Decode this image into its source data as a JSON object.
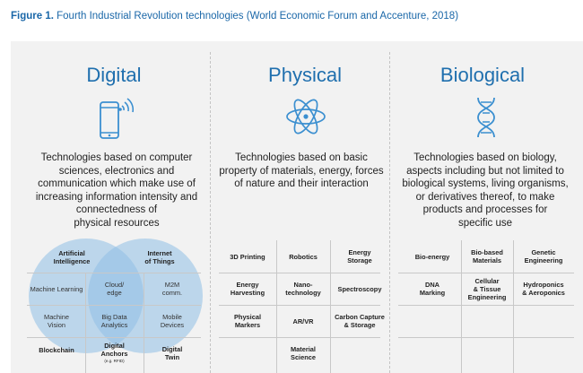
{
  "figure": {
    "label": "Figure 1.",
    "title": "Fourth Industrial Revolution technologies (World Economic Forum and Accenture, 2018)"
  },
  "columns": {
    "digital": {
      "title": "Digital",
      "icon": "smartphone-wifi-icon",
      "desc": [
        "Technologies based on computer",
        "sciences, electronics and",
        "communication which make use of",
        "increasing information intensity and",
        "connectedness of",
        "physical resources"
      ],
      "venn": {
        "circle_left": "Artificial Intelligence",
        "circle_right": "Internet of Things"
      },
      "cells": [
        [
          "Artificial\nIntelligence",
          "",
          "Internet\nof Things"
        ],
        [
          "Machine Learning",
          "Cloud/\nedge",
          "M2M\ncomm."
        ],
        [
          "Machine\nVision",
          "Big Data\nAnalytics",
          "Mobile\nDevices"
        ],
        [
          "Blockchain",
          "Digital\nAnchors",
          "Digital\nTwin"
        ]
      ],
      "anchors_note": "(e.g. RFID)"
    },
    "physical": {
      "title": "Physical",
      "icon": "atom-icon",
      "desc": [
        "Technologies based on basic",
        "property of materials, energy, forces",
        "of nature and their interaction"
      ],
      "cells": [
        [
          "3D Printing",
          "Robotics",
          "Energy\nStorage"
        ],
        [
          "Energy\nHarvesting",
          "Nano-\ntechnology",
          "Spectroscopy"
        ],
        [
          "Physical\nMarkers",
          "AR/VR",
          "Carbon Capture\n& Storage"
        ],
        [
          "",
          "Material\nScience",
          ""
        ]
      ]
    },
    "biological": {
      "title": "Biological",
      "icon": "dna-icon",
      "desc": [
        "Technologies based on biology,",
        "aspects including but not limited to",
        "biological systems, living organisms,",
        "or derivatives thereof, to make",
        "products and processes for",
        "specific use"
      ],
      "cells": [
        [
          "Bio-energy",
          "Bio-based\nMaterials",
          "Genetic\nEngineering"
        ],
        [
          "DNA\nMarking",
          "Cellular\n& Tissue\nEngineering",
          "Hydroponics\n& Aeroponics"
        ],
        [
          "",
          "",
          ""
        ],
        [
          "",
          "",
          ""
        ]
      ]
    }
  },
  "colors": {
    "accent": "#1f6fae",
    "title": "#1a67a8",
    "panel": "#f2f2f2",
    "icon": "#3b8fd0",
    "venn_fill": "#8fc0e6"
  }
}
